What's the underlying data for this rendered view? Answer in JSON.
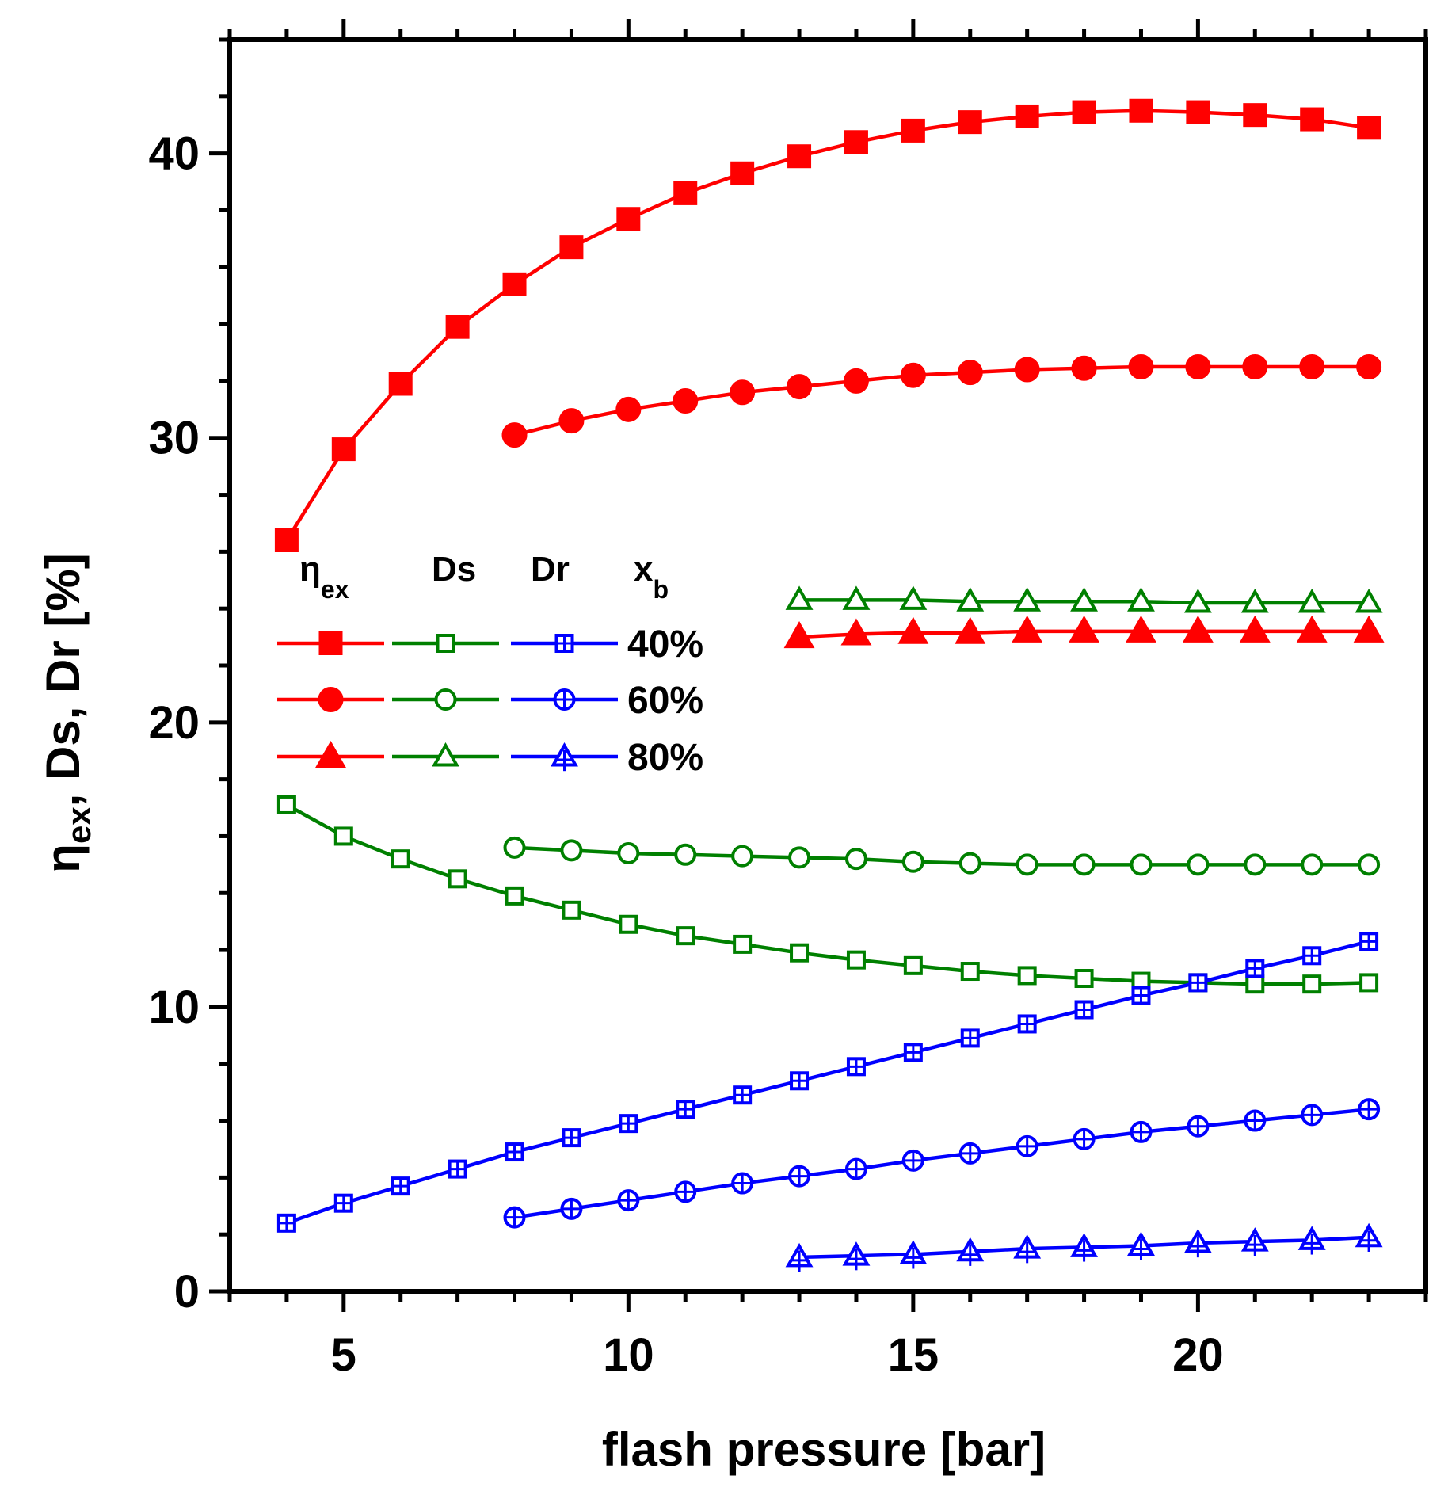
{
  "chart_data": {
    "type": "line",
    "title": "",
    "xlabel": "flash pressure [bar]",
    "ylabel": {
      "main": "η",
      "sub": "ex",
      "rest": ", Ds, Dr [%]"
    },
    "xlim": [
      3,
      24
    ],
    "ylim": [
      0,
      44
    ],
    "xticks": [
      5,
      10,
      15,
      20
    ],
    "yticks": [
      0,
      10,
      20,
      30,
      40
    ],
    "colors": {
      "eta": "#ff0000",
      "ds": "#008000",
      "dr": "#0000ff"
    },
    "legend": {
      "headers": [
        {
          "text": "η",
          "sub": "ex"
        },
        {
          "text": "Ds",
          "sub": ""
        },
        {
          "text": "Dr",
          "sub": ""
        },
        {
          "text": "x",
          "sub": "b"
        }
      ],
      "rows": [
        "40%",
        "60%",
        "80%"
      ]
    },
    "series": [
      {
        "name": "eta_ex 40%",
        "quantity": "eta",
        "xb": "40%",
        "marker": "square-filled",
        "x": [
          4,
          5,
          6,
          7,
          8,
          9,
          10,
          11,
          12,
          13,
          14,
          15,
          16,
          17,
          18,
          19,
          20,
          21,
          22,
          23
        ],
        "y": [
          26.4,
          29.6,
          31.9,
          33.9,
          35.4,
          36.7,
          37.7,
          38.6,
          39.3,
          39.9,
          40.4,
          40.8,
          41.1,
          41.3,
          41.45,
          41.5,
          41.45,
          41.35,
          41.2,
          40.9
        ]
      },
      {
        "name": "eta_ex 60%",
        "quantity": "eta",
        "xb": "60%",
        "marker": "circle-filled",
        "x": [
          8,
          9,
          10,
          11,
          12,
          13,
          14,
          15,
          16,
          17,
          18,
          19,
          20,
          21,
          22,
          23
        ],
        "y": [
          30.1,
          30.6,
          31.0,
          31.3,
          31.6,
          31.8,
          32.0,
          32.2,
          32.3,
          32.4,
          32.45,
          32.5,
          32.5,
          32.5,
          32.5,
          32.5
        ]
      },
      {
        "name": "eta_ex 80%",
        "quantity": "eta",
        "xb": "80%",
        "marker": "triangle-filled",
        "x": [
          13,
          14,
          15,
          16,
          17,
          18,
          19,
          20,
          21,
          22,
          23
        ],
        "y": [
          23.0,
          23.1,
          23.15,
          23.15,
          23.2,
          23.2,
          23.2,
          23.2,
          23.2,
          23.2,
          23.2
        ]
      },
      {
        "name": "Ds 40%",
        "quantity": "ds",
        "xb": "40%",
        "marker": "square-open",
        "x": [
          4,
          5,
          6,
          7,
          8,
          9,
          10,
          11,
          12,
          13,
          14,
          15,
          16,
          17,
          18,
          19,
          20,
          21,
          22,
          23
        ],
        "y": [
          17.1,
          16.0,
          15.2,
          14.5,
          13.9,
          13.4,
          12.9,
          12.5,
          12.2,
          11.9,
          11.65,
          11.45,
          11.25,
          11.1,
          11.0,
          10.9,
          10.85,
          10.8,
          10.8,
          10.85
        ]
      },
      {
        "name": "Ds 60%",
        "quantity": "ds",
        "xb": "60%",
        "marker": "circle-open",
        "x": [
          8,
          9,
          10,
          11,
          12,
          13,
          14,
          15,
          16,
          17,
          18,
          19,
          20,
          21,
          22,
          23
        ],
        "y": [
          15.6,
          15.5,
          15.4,
          15.35,
          15.3,
          15.25,
          15.2,
          15.1,
          15.05,
          15.0,
          15.0,
          15.0,
          15.0,
          15.0,
          15.0,
          15.0
        ]
      },
      {
        "name": "Ds 80%",
        "quantity": "ds",
        "xb": "80%",
        "marker": "triangle-open",
        "x": [
          13,
          14,
          15,
          16,
          17,
          18,
          19,
          20,
          21,
          22,
          23
        ],
        "y": [
          24.3,
          24.3,
          24.3,
          24.25,
          24.25,
          24.25,
          24.25,
          24.2,
          24.2,
          24.2,
          24.2
        ]
      },
      {
        "name": "Dr 40%",
        "quantity": "dr",
        "xb": "40%",
        "marker": "square-cross",
        "x": [
          4,
          5,
          6,
          7,
          8,
          9,
          10,
          11,
          12,
          13,
          14,
          15,
          16,
          17,
          18,
          19,
          20,
          21,
          22,
          23
        ],
        "y": [
          2.4,
          3.1,
          3.7,
          4.3,
          4.9,
          5.4,
          5.9,
          6.4,
          6.9,
          7.4,
          7.9,
          8.4,
          8.9,
          9.4,
          9.9,
          10.4,
          10.85,
          11.35,
          11.8,
          12.3
        ]
      },
      {
        "name": "Dr 60%",
        "quantity": "dr",
        "xb": "60%",
        "marker": "circle-cross",
        "x": [
          8,
          9,
          10,
          11,
          12,
          13,
          14,
          15,
          16,
          17,
          18,
          19,
          20,
          21,
          22,
          23
        ],
        "y": [
          2.6,
          2.9,
          3.2,
          3.5,
          3.8,
          4.05,
          4.3,
          4.6,
          4.85,
          5.1,
          5.35,
          5.6,
          5.8,
          6.0,
          6.2,
          6.4
        ]
      },
      {
        "name": "Dr 80%",
        "quantity": "dr",
        "xb": "80%",
        "marker": "triangle-cross",
        "x": [
          13,
          14,
          15,
          16,
          17,
          18,
          19,
          20,
          21,
          22,
          23
        ],
        "y": [
          1.2,
          1.25,
          1.3,
          1.4,
          1.5,
          1.55,
          1.6,
          1.7,
          1.75,
          1.8,
          1.9
        ]
      }
    ]
  }
}
